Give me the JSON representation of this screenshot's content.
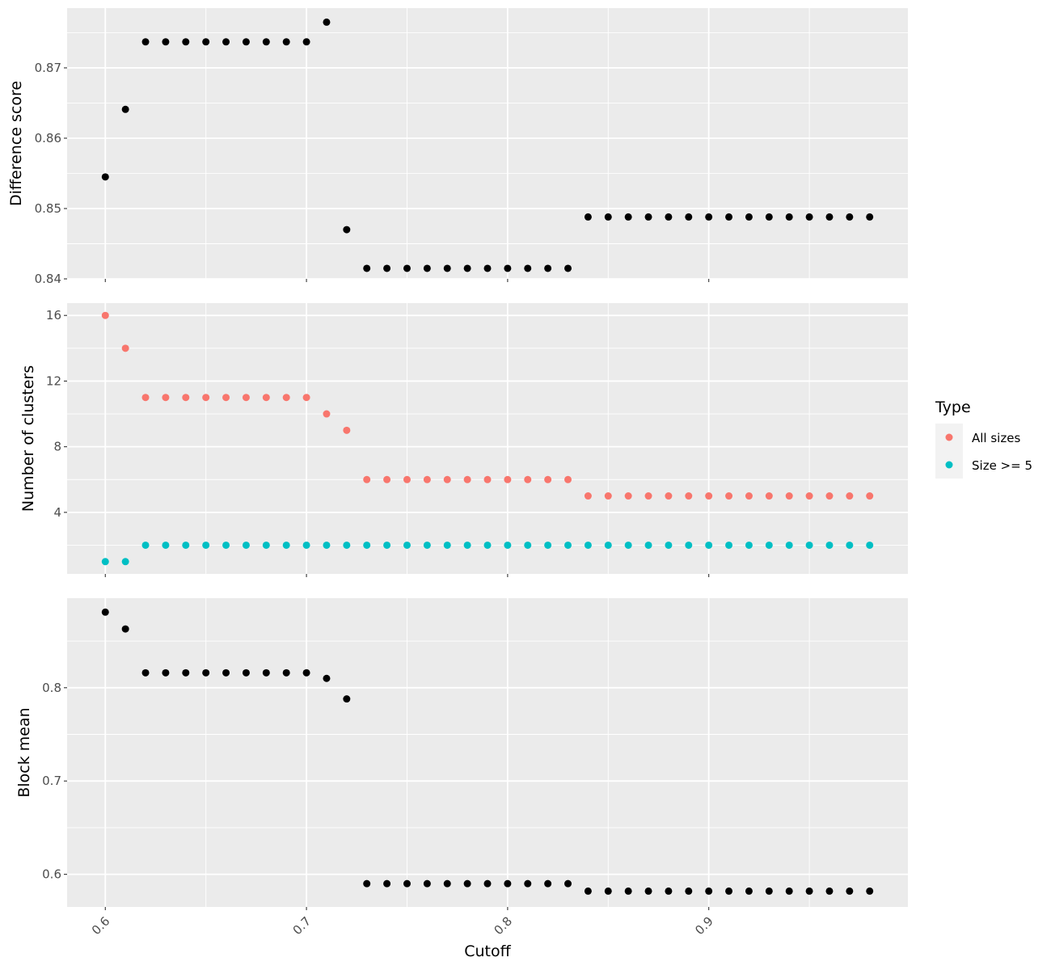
{
  "chart_data": {
    "type": "scatter",
    "xlabel": "Cutoff",
    "x_ticks": [
      "0.6",
      "0.7",
      "0.8",
      "0.9"
    ],
    "x_tick_values": [
      0.6,
      0.7,
      0.8,
      0.9
    ],
    "xlim": [
      0.581,
      0.999
    ],
    "x": [
      0.6,
      0.61,
      0.62,
      0.63,
      0.64,
      0.65,
      0.66,
      0.67,
      0.68,
      0.69,
      0.7,
      0.71,
      0.72,
      0.73,
      0.74,
      0.75,
      0.76,
      0.77,
      0.78,
      0.79,
      0.8,
      0.81,
      0.82,
      0.83,
      0.84,
      0.85,
      0.86,
      0.87,
      0.88,
      0.89,
      0.9,
      0.91,
      0.92,
      0.93,
      0.94,
      0.95,
      0.96,
      0.97,
      0.98
    ],
    "panels": [
      {
        "ylabel": "Difference score",
        "ylim": [
          0.84,
          0.8785
        ],
        "y_ticks": [
          "0.84",
          "0.85",
          "0.86",
          "0.87"
        ],
        "y_tick_values": [
          0.84,
          0.85,
          0.86,
          0.87
        ],
        "series": [
          {
            "color": "#000000",
            "values": [
              0.8545,
              0.8641,
              0.8737,
              0.8737,
              0.8737,
              0.8737,
              0.8737,
              0.8737,
              0.8737,
              0.8737,
              0.8737,
              0.8765,
              0.847,
              0.8415,
              0.8415,
              0.8415,
              0.8415,
              0.8415,
              0.8415,
              0.8415,
              0.8415,
              0.8415,
              0.8415,
              0.8415,
              0.8488,
              0.8488,
              0.8488,
              0.8488,
              0.8488,
              0.8488,
              0.8488,
              0.8488,
              0.8488,
              0.8488,
              0.8488,
              0.8488,
              0.8488,
              0.8488,
              0.8488
            ]
          }
        ]
      },
      {
        "ylabel": "Number of clusters",
        "ylim": [
          0.25,
          16.75
        ],
        "y_ticks": [
          "4",
          "8",
          "12",
          "16"
        ],
        "y_tick_values": [
          4,
          8,
          12,
          16
        ],
        "series": [
          {
            "name": "All sizes",
            "color": "#F8766D",
            "values": [
              16,
              14,
              11,
              11,
              11,
              11,
              11,
              11,
              11,
              11,
              11,
              10,
              9,
              6,
              6,
              6,
              6,
              6,
              6,
              6,
              6,
              6,
              6,
              6,
              5,
              5,
              5,
              5,
              5,
              5,
              5,
              5,
              5,
              5,
              5,
              5,
              5,
              5,
              5
            ]
          },
          {
            "name": "Size >= 5",
            "color": "#00BFC4",
            "values": [
              1,
              1,
              2,
              2,
              2,
              2,
              2,
              2,
              2,
              2,
              2,
              2,
              2,
              2,
              2,
              2,
              2,
              2,
              2,
              2,
              2,
              2,
              2,
              2,
              2,
              2,
              2,
              2,
              2,
              2,
              2,
              2,
              2,
              2,
              2,
              2,
              2,
              2,
              2
            ]
          }
        ]
      },
      {
        "ylabel": "Block mean",
        "ylim": [
          0.565,
          0.896
        ],
        "y_ticks": [
          "0.6",
          "0.7",
          "0.8"
        ],
        "y_tick_values": [
          0.6,
          0.7,
          0.8
        ],
        "series": [
          {
            "color": "#000000",
            "values": [
              0.881,
              0.863,
              0.816,
              0.816,
              0.816,
              0.816,
              0.816,
              0.816,
              0.816,
              0.816,
              0.816,
              0.81,
              0.788,
              0.59,
              0.59,
              0.59,
              0.59,
              0.59,
              0.59,
              0.59,
              0.59,
              0.59,
              0.59,
              0.59,
              0.582,
              0.582,
              0.582,
              0.582,
              0.582,
              0.582,
              0.582,
              0.582,
              0.582,
              0.582,
              0.582,
              0.582,
              0.582,
              0.582,
              0.582
            ]
          }
        ]
      }
    ],
    "legend": {
      "title": "Type",
      "position": "right",
      "entries": [
        {
          "label": "All sizes",
          "color": "#F8766D"
        },
        {
          "label": "Size >= 5",
          "color": "#00BFC4"
        }
      ]
    },
    "grid": true,
    "panel_background": "#EBEBEB"
  }
}
